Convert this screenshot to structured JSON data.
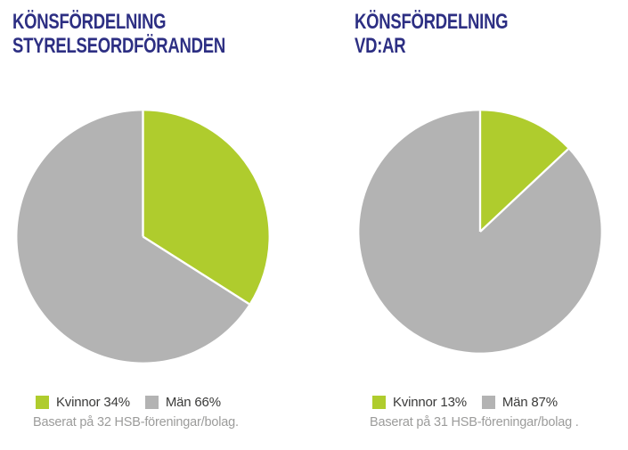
{
  "colors": {
    "background": "#FFFFFF",
    "title": "#2D2F83",
    "kvinnor_green": "#AFCC2D",
    "man_gray": "#B3B3B3",
    "legend_text": "#3A3A39",
    "footnote_text": "#9C9C9B",
    "slice_separator": "#FFFFFF"
  },
  "chart_data": [
    {
      "type": "pie",
      "title": "KÖNSFÖRDELNING STYRELSEORDFÖRANDEN",
      "title_lines": [
        "KÖNSFÖRDELNING",
        "STYRELSEORDFÖRANDEN"
      ],
      "start_angle_deg": 0,
      "direction": "clockwise",
      "legend_position": "bottom",
      "slices": [
        {
          "label": "Kvinnor",
          "value": 34,
          "color": "#AFCC2D"
        },
        {
          "label": "Män",
          "value": 66,
          "color": "#B3B3B3"
        }
      ],
      "legend": [
        "Kvinnor 34%",
        "Män 66%"
      ],
      "footnote": "Baserat på 32 HSB-föreningar/bolag."
    },
    {
      "type": "pie",
      "title": "KÖNSFÖRDELNING VD:AR",
      "title_lines": [
        "KÖNSFÖRDELNING",
        "VD:AR"
      ],
      "start_angle_deg": 0,
      "direction": "clockwise",
      "legend_position": "bottom",
      "slices": [
        {
          "label": "Kvinnor",
          "value": 13,
          "color": "#AFCC2D"
        },
        {
          "label": "Män",
          "value": 87,
          "color": "#B3B3B3"
        }
      ],
      "legend": [
        "Kvinnor 13%",
        "Män 87%"
      ],
      "footnote": "Baserat på 31 HSB-föreningar/bolag ."
    }
  ]
}
